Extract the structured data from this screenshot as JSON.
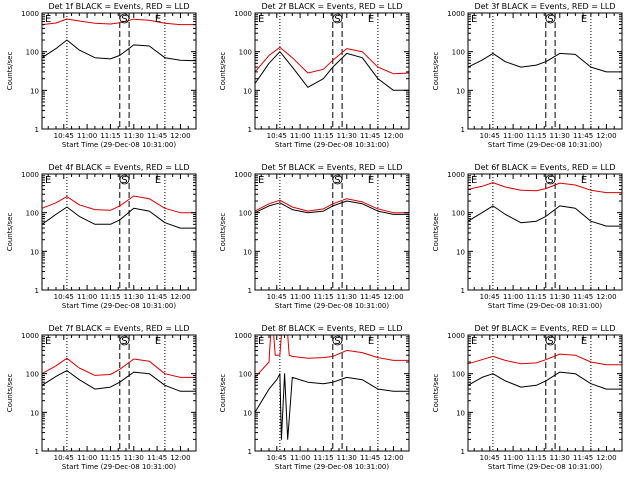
{
  "figure": {
    "colors": {
      "events": "#000000",
      "lld": "#dd0000",
      "axis": "#000000",
      "background": "#ffffff"
    },
    "xlabel": "Start Time (29-Dec-08 10:31:00)",
    "ylabel": "Counts/sec",
    "marker_labels": {
      "left_e": "E",
      "s": "S",
      "right_e": "E"
    },
    "x_tick_labels": [
      "10:45",
      "11:00",
      "11:15",
      "11:30",
      "11:45",
      "12:00"
    ]
  },
  "chart_data": [
    {
      "type": "line",
      "title": "Det 1f BLACK = Events, RED = LLD",
      "xlabel": "Start Time (29-Dec-08 10:31:00)",
      "ylabel": "Counts/sec",
      "yscale": "log",
      "ylim": [
        1,
        1000
      ],
      "y_ticks": [
        1,
        10,
        100,
        1000
      ],
      "x_ticks": [
        "10:45",
        "11:00",
        "11:15",
        "11:30",
        "11:45",
        "12:00"
      ],
      "x_range": [
        "10:31",
        "12:10"
      ],
      "markers": {
        "dotted": [
          "10:47",
          "11:50"
        ],
        "dashed": [
          "11:21",
          "11:27"
        ]
      },
      "series": [
        {
          "name": "Events",
          "color": "#000000",
          "x": [
            "10:31",
            "10:40",
            "10:47",
            "10:55",
            "11:05",
            "11:15",
            "11:21",
            "11:30",
            "11:40",
            "11:50",
            "12:00",
            "12:10"
          ],
          "values": [
            70,
            120,
            200,
            110,
            70,
            65,
            80,
            150,
            140,
            70,
            60,
            58
          ]
        },
        {
          "name": "LLD",
          "color": "#dd0000",
          "x": [
            "10:31",
            "10:40",
            "10:47",
            "10:55",
            "11:05",
            "11:15",
            "11:21",
            "11:30",
            "11:40",
            "11:50",
            "12:00",
            "12:10"
          ],
          "values": [
            500,
            550,
            700,
            620,
            540,
            520,
            560,
            690,
            650,
            540,
            500,
            500
          ]
        }
      ]
    },
    {
      "type": "line",
      "title": "Det 2f BLACK = Events, RED = LLD",
      "xlabel": "Start Time (29-Dec-08 10:31:00)",
      "ylabel": "Counts/sec",
      "yscale": "log",
      "ylim": [
        1,
        1000
      ],
      "y_ticks": [
        1,
        10,
        100,
        1000
      ],
      "x_ticks": [
        "10:45",
        "11:00",
        "11:15",
        "11:30",
        "11:45",
        "12:00"
      ],
      "x_range": [
        "10:31",
        "12:10"
      ],
      "markers": {
        "dotted": [
          "10:47",
          "11:50"
        ],
        "dashed": [
          "11:21",
          "11:27"
        ]
      },
      "series": [
        {
          "name": "Events",
          "color": "#000000",
          "x": [
            "10:31",
            "10:40",
            "10:47",
            "10:55",
            "11:05",
            "11:15",
            "11:21",
            "11:30",
            "11:40",
            "11:50",
            "12:00",
            "12:10"
          ],
          "values": [
            15,
            50,
            100,
            40,
            12,
            20,
            40,
            90,
            70,
            20,
            10,
            10
          ]
        },
        {
          "name": "LLD",
          "color": "#dd0000",
          "x": [
            "10:31",
            "10:40",
            "10:47",
            "10:55",
            "11:05",
            "11:15",
            "11:21",
            "11:30",
            "11:40",
            "11:50",
            "12:00",
            "12:10"
          ],
          "values": [
            30,
            80,
            130,
            70,
            28,
            35,
            60,
            120,
            100,
            40,
            27,
            28
          ]
        }
      ]
    },
    {
      "type": "line",
      "title": "Det 3f BLACK = Events, RED = LLD",
      "xlabel": "Start Time (29-Dec-08 10:31:00)",
      "ylabel": "Counts/sec",
      "yscale": "log",
      "ylim": [
        1,
        1000
      ],
      "y_ticks": [
        1,
        10,
        100,
        1000
      ],
      "x_ticks": [
        "10:45",
        "11:00",
        "11:15",
        "11:30",
        "11:45",
        "12:00"
      ],
      "x_range": [
        "10:31",
        "12:10"
      ],
      "markers": {
        "dotted": [
          "10:47",
          "11:50"
        ],
        "dashed": [
          "11:21",
          "11:27"
        ]
      },
      "series": [
        {
          "name": "Events",
          "color": "#000000",
          "x": [
            "10:31",
            "10:40",
            "10:47",
            "10:55",
            "11:05",
            "11:15",
            "11:21",
            "11:30",
            "11:40",
            "11:50",
            "12:00",
            "12:10"
          ],
          "values": [
            40,
            60,
            90,
            55,
            40,
            45,
            55,
            90,
            85,
            40,
            30,
            30
          ]
        },
        {
          "name": "LLD",
          "color": "#dd0000",
          "x": [
            "10:31",
            "10:40",
            "10:47",
            "10:55",
            "11:05",
            "11:15",
            "11:21",
            "11:30",
            "11:40",
            "11:50",
            "12:00",
            "12:10"
          ],
          "values": [
            1000,
            1000,
            1000,
            1000,
            1000,
            1000,
            1000,
            1000,
            1000,
            1000,
            1000,
            1000
          ]
        }
      ]
    },
    {
      "type": "line",
      "title": "Det 4f BLACK = Events, RED = LLD",
      "xlabel": "Start Time (29-Dec-08 10:31:00)",
      "ylabel": "Counts/sec",
      "yscale": "log",
      "ylim": [
        1,
        1000
      ],
      "y_ticks": [
        1,
        10,
        100,
        1000
      ],
      "x_ticks": [
        "10:45",
        "11:00",
        "11:15",
        "11:30",
        "11:45",
        "12:00"
      ],
      "x_range": [
        "10:31",
        "12:10"
      ],
      "markers": {
        "dotted": [
          "10:47",
          "11:50"
        ],
        "dashed": [
          "11:21",
          "11:27"
        ]
      },
      "series": [
        {
          "name": "Events",
          "color": "#000000",
          "x": [
            "10:31",
            "10:40",
            "10:47",
            "10:55",
            "11:05",
            "11:15",
            "11:21",
            "11:30",
            "11:40",
            "11:50",
            "12:00",
            "12:10"
          ],
          "values": [
            50,
            90,
            140,
            80,
            50,
            50,
            65,
            130,
            110,
            55,
            40,
            40
          ]
        },
        {
          "name": "LLD",
          "color": "#dd0000",
          "x": [
            "10:31",
            "10:40",
            "10:47",
            "10:55",
            "11:05",
            "11:15",
            "11:21",
            "11:30",
            "11:40",
            "11:50",
            "12:00",
            "12:10"
          ],
          "values": [
            130,
            180,
            260,
            160,
            120,
            115,
            150,
            270,
            230,
            130,
            100,
            100
          ]
        }
      ]
    },
    {
      "type": "line",
      "title": "Det 5f BLACK = Events, RED = LLD",
      "xlabel": "Start Time (29-Dec-08 10:31:00)",
      "ylabel": "Counts/sec",
      "yscale": "log",
      "ylim": [
        1,
        1000
      ],
      "y_ticks": [
        1,
        10,
        100,
        1000
      ],
      "x_ticks": [
        "10:45",
        "11:00",
        "11:15",
        "11:30",
        "11:45",
        "12:00"
      ],
      "x_range": [
        "10:31",
        "12:10"
      ],
      "markers": {
        "dotted": [
          "10:47",
          "11:50"
        ],
        "dashed": [
          "11:21",
          "11:27"
        ]
      },
      "series": [
        {
          "name": "Events",
          "color": "#000000",
          "x": [
            "10:31",
            "10:40",
            "10:47",
            "10:55",
            "11:05",
            "11:15",
            "11:21",
            "11:30",
            "11:40",
            "11:50",
            "12:00",
            "12:10"
          ],
          "values": [
            100,
            150,
            180,
            120,
            100,
            110,
            150,
            200,
            170,
            110,
            90,
            90
          ]
        },
        {
          "name": "LLD",
          "color": "#dd0000",
          "x": [
            "10:31",
            "10:40",
            "10:47",
            "10:55",
            "11:05",
            "11:15",
            "11:21",
            "11:30",
            "11:40",
            "11:50",
            "12:00",
            "12:10"
          ],
          "values": [
            110,
            170,
            210,
            140,
            110,
            125,
            170,
            230,
            190,
            125,
            100,
            100
          ]
        }
      ]
    },
    {
      "type": "line",
      "title": "Det 6f BLACK = Events, RED = LLD",
      "xlabel": "Start Time (29-Dec-08 10:31:00)",
      "ylabel": "Counts/sec",
      "yscale": "log",
      "ylim": [
        1,
        1000
      ],
      "y_ticks": [
        1,
        10,
        100,
        1000
      ],
      "x_ticks": [
        "10:45",
        "11:00",
        "11:15",
        "11:30",
        "11:45",
        "12:00"
      ],
      "x_range": [
        "10:31",
        "12:10"
      ],
      "markers": {
        "dotted": [
          "10:47",
          "11:50"
        ],
        "dashed": [
          "11:21",
          "11:27"
        ]
      },
      "series": [
        {
          "name": "Events",
          "color": "#000000",
          "x": [
            "10:31",
            "10:40",
            "10:47",
            "10:55",
            "11:05",
            "11:15",
            "11:21",
            "11:30",
            "11:40",
            "11:50",
            "12:00",
            "12:10"
          ],
          "values": [
            60,
            100,
            150,
            90,
            55,
            60,
            80,
            150,
            130,
            60,
            45,
            45
          ]
        },
        {
          "name": "LLD",
          "color": "#dd0000",
          "x": [
            "10:31",
            "10:40",
            "10:47",
            "10:55",
            "11:05",
            "11:15",
            "11:21",
            "11:30",
            "11:40",
            "11:50",
            "12:00",
            "12:10"
          ],
          "values": [
            400,
            480,
            600,
            460,
            380,
            370,
            420,
            580,
            520,
            380,
            330,
            330
          ]
        }
      ]
    },
    {
      "type": "line",
      "title": "Det 7f BLACK = Events, RED = LLD",
      "xlabel": "Start Time (29-Dec-08 10:31:00)",
      "ylabel": "Counts/sec",
      "yscale": "log",
      "ylim": [
        1,
        1000
      ],
      "y_ticks": [
        1,
        10,
        100,
        1000
      ],
      "x_ticks": [
        "10:45",
        "11:00",
        "11:15",
        "11:30",
        "11:45",
        "12:00"
      ],
      "x_range": [
        "10:31",
        "12:10"
      ],
      "markers": {
        "dotted": [
          "10:47",
          "11:50"
        ],
        "dashed": [
          "11:21",
          "11:27"
        ]
      },
      "series": [
        {
          "name": "Events",
          "color": "#000000",
          "x": [
            "10:31",
            "10:40",
            "10:47",
            "10:55",
            "11:05",
            "11:15",
            "11:21",
            "11:30",
            "11:40",
            "11:50",
            "12:00",
            "12:10"
          ],
          "values": [
            50,
            85,
            120,
            70,
            40,
            45,
            60,
            110,
            100,
            50,
            35,
            35
          ]
        },
        {
          "name": "LLD",
          "color": "#dd0000",
          "x": [
            "10:31",
            "10:40",
            "10:47",
            "10:55",
            "11:05",
            "11:15",
            "11:21",
            "11:30",
            "11:40",
            "11:50",
            "12:00",
            "12:10"
          ],
          "values": [
            100,
            160,
            250,
            140,
            90,
            95,
            130,
            240,
            210,
            100,
            80,
            80
          ]
        }
      ]
    },
    {
      "type": "line",
      "title": "Det 8f BLACK = Events, RED = LLD",
      "xlabel": "Start Time (29-Dec-08 10:31:00)",
      "ylabel": "Counts/sec",
      "yscale": "log",
      "ylim": [
        1,
        1000
      ],
      "y_ticks": [
        1,
        10,
        100,
        1000
      ],
      "x_ticks": [
        "10:45",
        "11:00",
        "11:15",
        "11:30",
        "11:45",
        "12:00"
      ],
      "x_range": [
        "10:31",
        "12:10"
      ],
      "markers": {
        "dotted": [
          "10:47",
          "11:50"
        ],
        "dashed": [
          "11:21",
          "11:27"
        ]
      },
      "series": [
        {
          "name": "Events",
          "color": "#000000",
          "x": [
            "10:31",
            "10:40",
            "10:45",
            "10:47",
            "10:48",
            "10:50",
            "10:52",
            "10:55",
            "11:05",
            "11:15",
            "11:21",
            "11:30",
            "11:40",
            "11:50",
            "12:00",
            "12:10"
          ],
          "values": [
            10,
            40,
            70,
            100,
            2,
            100,
            2,
            80,
            60,
            55,
            60,
            80,
            70,
            40,
            35,
            35
          ]
        },
        {
          "name": "LLD",
          "color": "#dd0000",
          "x": [
            "10:31",
            "10:40",
            "10:41",
            "10:43",
            "10:44",
            "10:47",
            "10:48",
            "10:52",
            "10:53",
            "10:55",
            "11:05",
            "11:15",
            "11:21",
            "11:30",
            "11:40",
            "11:50",
            "12:00",
            "12:10"
          ],
          "values": [
            80,
            200,
            1000,
            1000,
            300,
            300,
            1000,
            1000,
            300,
            280,
            250,
            260,
            280,
            400,
            350,
            260,
            220,
            220
          ]
        }
      ]
    },
    {
      "type": "line",
      "title": "Det 9f BLACK = Events, RED = LLD",
      "xlabel": "Start Time (29-Dec-08 10:31:00)",
      "ylabel": "Counts/sec",
      "yscale": "log",
      "ylim": [
        1,
        1000
      ],
      "y_ticks": [
        1,
        10,
        100,
        1000
      ],
      "x_ticks": [
        "10:45",
        "11:00",
        "11:15",
        "11:30",
        "11:45",
        "12:00"
      ],
      "x_range": [
        "10:31",
        "12:10"
      ],
      "markers": {
        "dotted": [
          "10:47",
          "11:50"
        ],
        "dashed": [
          "11:21",
          "11:27"
        ]
      },
      "series": [
        {
          "name": "Events",
          "color": "#000000",
          "x": [
            "10:31",
            "10:40",
            "10:47",
            "10:55",
            "11:05",
            "11:15",
            "11:21",
            "11:30",
            "11:40",
            "11:50",
            "12:00",
            "12:10"
          ],
          "values": [
            50,
            80,
            100,
            65,
            45,
            50,
            65,
            110,
            100,
            55,
            40,
            40
          ]
        },
        {
          "name": "LLD",
          "color": "#dd0000",
          "x": [
            "10:31",
            "10:40",
            "10:47",
            "10:55",
            "11:05",
            "11:15",
            "11:21",
            "11:30",
            "11:40",
            "11:50",
            "12:00",
            "12:10"
          ],
          "values": [
            180,
            230,
            280,
            220,
            180,
            190,
            230,
            320,
            300,
            200,
            170,
            170
          ]
        }
      ]
    }
  ]
}
